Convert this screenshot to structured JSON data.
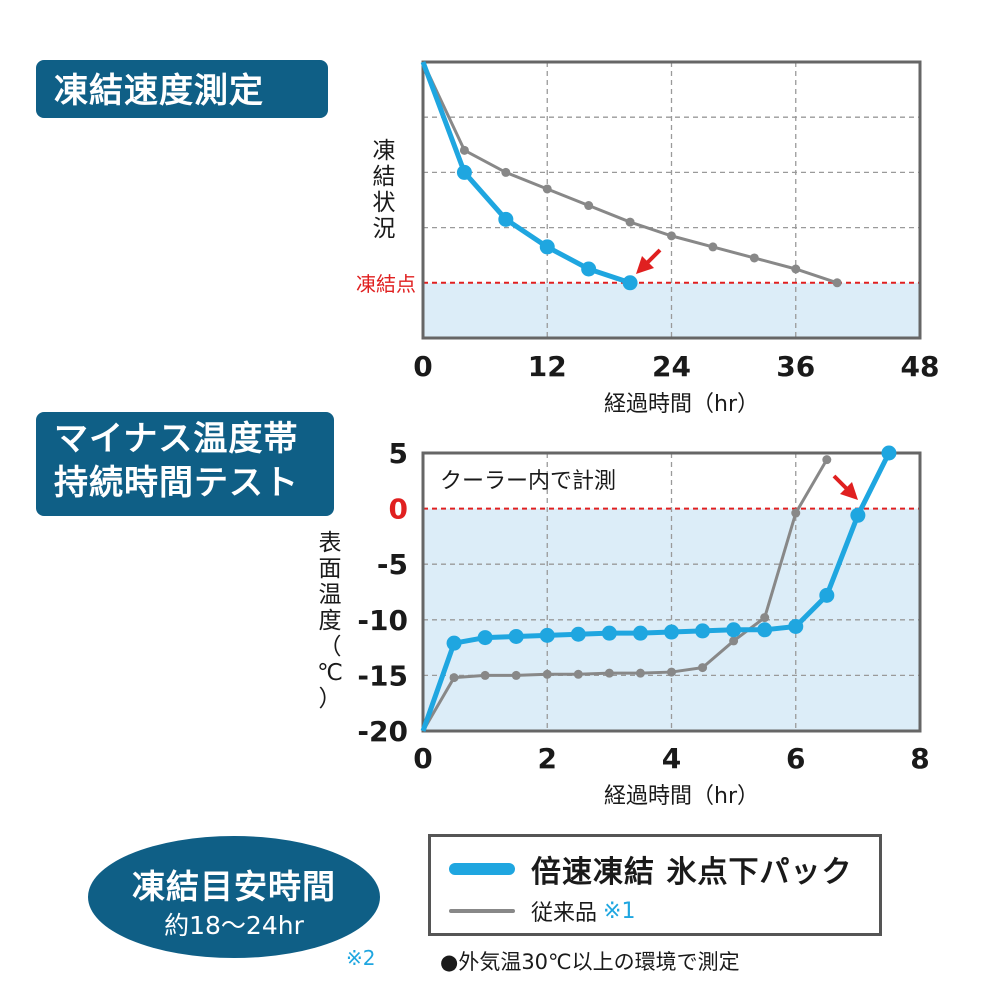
{
  "titles": {
    "chart1": "凍結速度測定",
    "chart2_line1": "マイナス温度帯",
    "chart2_line2": "持続時間テスト"
  },
  "colors": {
    "fast": "#1fa6e0",
    "conventional": "#888888",
    "title_bg": "#0f5f86",
    "freeze_line": "#e02020",
    "fill": "#dcedf8"
  },
  "chart_data": [
    {
      "type": "line",
      "title": "凍結速度測定",
      "xlabel": "経過時間（hr）",
      "ylabel": "凍結状況",
      "xlim": [
        0,
        48
      ],
      "ylim": [
        0,
        100
      ],
      "xticks": [
        "0",
        "12",
        "24",
        "36",
        "48"
      ],
      "annotation": "凍結点",
      "freeze_level": 20,
      "grid": true,
      "series": [
        {
          "name": "倍速凍結 氷点下パック",
          "x": [
            0,
            4,
            8,
            12,
            16,
            20
          ],
          "y": [
            100,
            60,
            43,
            33,
            25,
            20
          ]
        },
        {
          "name": "従来品",
          "x": [
            0,
            4,
            8,
            12,
            16,
            20,
            24,
            28,
            32,
            36,
            40
          ],
          "y": [
            100,
            68,
            60,
            54,
            48,
            42,
            37,
            33,
            29,
            25,
            20
          ]
        }
      ]
    },
    {
      "type": "line",
      "title": "マイナス温度帯持続時間テスト",
      "xlabel": "経過時間（hr）",
      "ylabel": "表面温度（℃）",
      "xlim": [
        0,
        8
      ],
      "ylim": [
        -20,
        5
      ],
      "xticks": [
        "0",
        "2",
        "4",
        "6",
        "8"
      ],
      "yticks": [
        "5",
        "0",
        "-5",
        "-10",
        "-15",
        "-20"
      ],
      "annotation": "クーラー内で計測",
      "grid": true,
      "series": [
        {
          "name": "倍速凍結 氷点下パック",
          "x": [
            0,
            0.5,
            1,
            1.5,
            2,
            2.5,
            3,
            3.5,
            4,
            4.5,
            5,
            5.5,
            6,
            6.5,
            7,
            7.5
          ],
          "y": [
            -20,
            -12.1,
            -11.6,
            -11.5,
            -11.4,
            -11.3,
            -11.2,
            -11.2,
            -11.1,
            -11.0,
            -10.9,
            -10.9,
            -10.6,
            -7.8,
            -0.6,
            5
          ]
        },
        {
          "name": "従来品",
          "x": [
            0,
            0.5,
            1,
            1.5,
            2,
            2.5,
            3,
            3.5,
            4,
            4.5,
            5,
            5.5,
            6,
            6.5
          ],
          "y": [
            -20,
            -15.2,
            -15.0,
            -15.0,
            -14.9,
            -14.9,
            -14.8,
            -14.8,
            -14.7,
            -14.3,
            -11.9,
            -9.8,
            -0.4,
            4.4
          ]
        }
      ]
    }
  ],
  "legend": {
    "fast_label": "倍速凍結 氷点下パック",
    "conv_label": "従来品",
    "conv_note": "※1"
  },
  "badge": {
    "line1": "凍結目安時間",
    "line2": "約18〜24hr"
  },
  "note2": "※2",
  "footnote": "●外気温30℃以上の環境で測定"
}
